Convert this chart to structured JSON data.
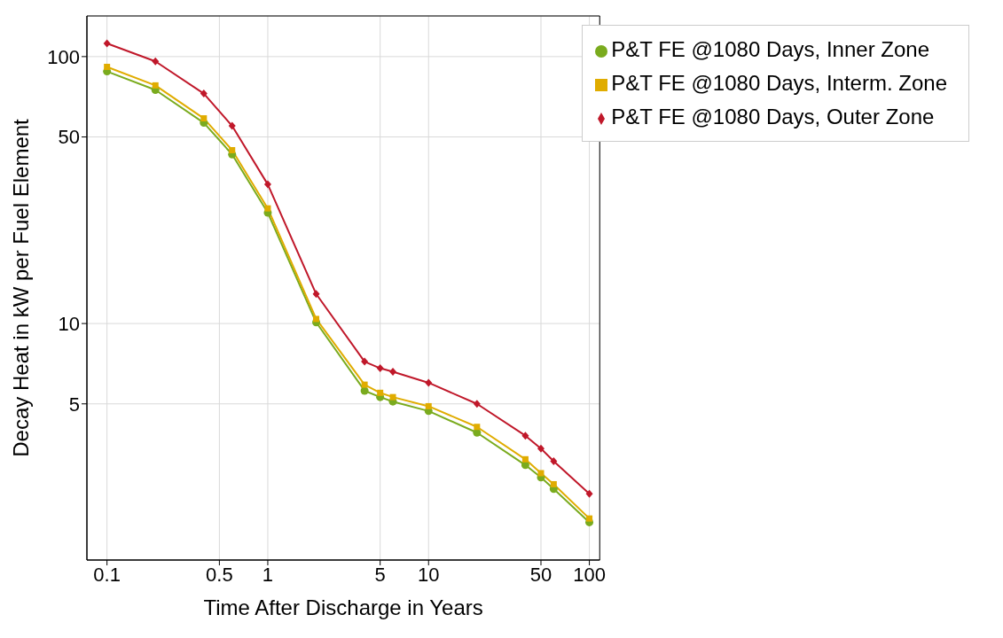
{
  "chart_data": {
    "type": "line",
    "xlabel": "Time After Discharge in Years",
    "ylabel": "Decay Heat in kW per Fuel Element",
    "x": [
      0.1,
      0.2,
      0.4,
      0.6,
      1,
      2,
      4,
      5,
      6,
      10,
      20,
      40,
      50,
      60,
      100
    ],
    "series": [
      {
        "name": "P&T FE @1080 Days, Inner Zone",
        "color": "#7aab1e",
        "marker": "circle",
        "values": [
          88,
          75,
          56.5,
          43,
          26,
          10.1,
          5.6,
          5.3,
          5.1,
          4.7,
          3.9,
          2.95,
          2.65,
          2.4,
          1.8
        ]
      },
      {
        "name": "P&T FE @1080 Days, Interm. Zone",
        "color": "#e0ac00",
        "marker": "square",
        "values": [
          91.5,
          78,
          58.7,
          44.6,
          27,
          10.4,
          5.9,
          5.5,
          5.3,
          4.9,
          4.1,
          3.1,
          2.75,
          2.5,
          1.86
        ]
      },
      {
        "name": "P&T FE @1080 Days, Outer Zone",
        "color": "#c0182a",
        "marker": "diamond",
        "values": [
          112,
          96,
          72.7,
          55,
          33.2,
          12.9,
          7.2,
          6.8,
          6.6,
          6,
          5,
          3.8,
          3.4,
          3.05,
          2.3
        ]
      }
    ],
    "log": "xy",
    "xlim": [
      0.075,
      116
    ],
    "ylim": [
      1.3,
      142
    ],
    "xticks": [
      0.1,
      0.5,
      1,
      5,
      10,
      50,
      100
    ],
    "yticks": [
      5,
      10,
      50,
      100
    ],
    "grid": true,
    "legend": "top right",
    "line_style": "solid"
  }
}
